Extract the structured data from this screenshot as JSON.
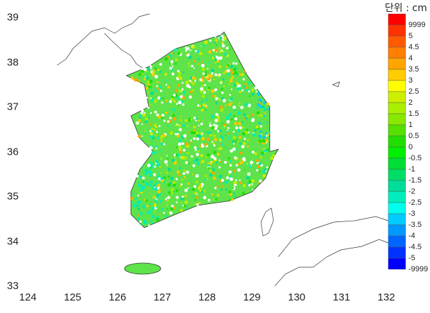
{
  "map": {
    "x_ticks": [
      "124",
      "125",
      "126",
      "127",
      "128",
      "129",
      "130",
      "131",
      "132"
    ],
    "y_ticks": [
      "39",
      "38",
      "37",
      "36",
      "35",
      "34",
      "33"
    ]
  },
  "colorbar": {
    "unit_label": "단위 : cm",
    "labels": [
      "9999",
      "5",
      "4.5",
      "4",
      "3.5",
      "3",
      "2.5",
      "2",
      "1.5",
      "1",
      "0.5",
      "0",
      "-0.5",
      "-1",
      "-1.5",
      "-2",
      "-2.5",
      "-3",
      "-3.5",
      "-4",
      "-4.5",
      "-5",
      "-9999"
    ],
    "colors": [
      "#ff0000",
      "#ff3300",
      "#ff5a00",
      "#ff7f00",
      "#ffa500",
      "#ffcc00",
      "#ffff00",
      "#ccee00",
      "#aaee00",
      "#88e800",
      "#55e000",
      "#22dd00",
      "#00ee00",
      "#00dd33",
      "#00dd66",
      "#00dd99",
      "#00eebb",
      "#00ffee",
      "#00ccff",
      "#0099ff",
      "#0066ff",
      "#0033ff",
      "#0000ff"
    ]
  }
}
